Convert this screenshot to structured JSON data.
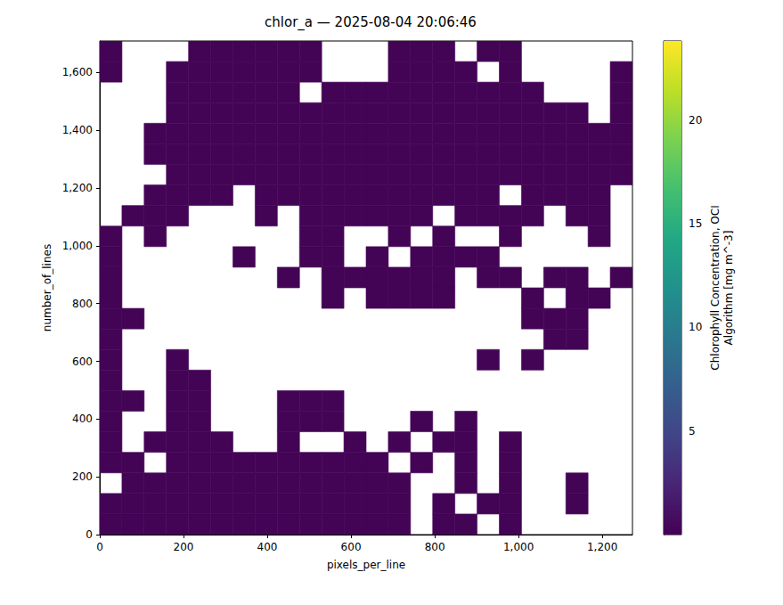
{
  "chart_data": {
    "type": "heatmap",
    "title": "chlor_a — 2025-08-04 20:06:46",
    "xlabel": "pixels_per_line",
    "ylabel": "number_of_lines",
    "xlim": [
      0,
      1272
    ],
    "xticks": [
      0,
      200,
      400,
      600,
      800,
      1000,
      1200
    ],
    "ylim": [
      0,
      1709
    ],
    "yticks": [
      0,
      200,
      400,
      600,
      800,
      1000,
      1200,
      1400,
      1600
    ],
    "clabel": "Chlorophyll Concentration, OCI\nAlgorithm [mg m^-3]",
    "clim": [
      0.02,
      23.8
    ],
    "cticks": [
      5,
      10,
      15,
      20
    ],
    "cells": [
      [
        0.2,
        0.2,
        0.2,
        0.2,
        0.2,
        0.2,
        0.2,
        0.2,
        0.2,
        0.2,
        0.2,
        0.2,
        0.2,
        0.2,
        null,
        0.2,
        0.2,
        null,
        0.2,
        null,
        null,
        null,
        null,
        null
      ],
      [
        0.2,
        0.2,
        0.2,
        0.2,
        0.2,
        0.2,
        0.2,
        0.2,
        0.2,
        0.2,
        0.2,
        0.2,
        0.2,
        0.2,
        null,
        0.2,
        null,
        0.2,
        0.2,
        null,
        null,
        0.2,
        null,
        null
      ],
      [
        null,
        0.2,
        0.2,
        0.2,
        0.2,
        0.2,
        0.2,
        0.2,
        0.2,
        0.2,
        0.2,
        0.2,
        0.2,
        0.2,
        null,
        null,
        0.2,
        null,
        0.2,
        null,
        null,
        0.2,
        null,
        null
      ],
      [
        0.2,
        0.2,
        null,
        0.2,
        0.2,
        0.2,
        0.2,
        0.2,
        0.2,
        0.2,
        0.2,
        0.2,
        0.2,
        null,
        0.2,
        null,
        0.2,
        null,
        0.2,
        null,
        null,
        null,
        null,
        null
      ],
      [
        0.2,
        null,
        0.2,
        0.2,
        0.2,
        0.2,
        null,
        null,
        0.2,
        null,
        null,
        0.2,
        null,
        0.2,
        null,
        0.2,
        0.2,
        null,
        0.2,
        null,
        null,
        null,
        null,
        null
      ],
      [
        0.2,
        null,
        null,
        0.2,
        0.2,
        null,
        null,
        null,
        0.2,
        0.2,
        0.2,
        null,
        null,
        null,
        0.2,
        null,
        0.2,
        null,
        null,
        null,
        null,
        null,
        null,
        null
      ],
      [
        0.2,
        0.2,
        null,
        0.2,
        0.2,
        null,
        null,
        null,
        0.2,
        0.2,
        0.2,
        null,
        null,
        null,
        null,
        null,
        null,
        null,
        null,
        null,
        null,
        null,
        null,
        null
      ],
      [
        0.2,
        null,
        null,
        0.2,
        0.2,
        null,
        null,
        null,
        null,
        null,
        null,
        null,
        null,
        null,
        null,
        null,
        null,
        null,
        null,
        null,
        null,
        null,
        null,
        null
      ],
      [
        0.2,
        null,
        null,
        0.2,
        null,
        null,
        null,
        null,
        null,
        null,
        null,
        null,
        null,
        null,
        null,
        null,
        null,
        0.2,
        null,
        0.2,
        null,
        null,
        null,
        null
      ],
      [
        0.2,
        null,
        null,
        null,
        null,
        null,
        null,
        null,
        null,
        null,
        null,
        null,
        null,
        null,
        null,
        null,
        null,
        null,
        null,
        null,
        0.2,
        0.2,
        null,
        null
      ],
      [
        0.2,
        0.2,
        null,
        null,
        null,
        null,
        null,
        null,
        null,
        null,
        null,
        null,
        null,
        null,
        null,
        null,
        null,
        null,
        null,
        0.2,
        0.2,
        0.2,
        null,
        null
      ],
      [
        0.2,
        null,
        null,
        null,
        null,
        null,
        null,
        null,
        null,
        null,
        0.2,
        null,
        0.2,
        0.2,
        0.2,
        0.2,
        null,
        null,
        null,
        0.2,
        null,
        0.2,
        0.2,
        null
      ],
      [
        0.2,
        null,
        null,
        null,
        null,
        null,
        null,
        null,
        0.2,
        null,
        0.2,
        0.2,
        0.2,
        0.2,
        0.2,
        0.2,
        null,
        0.2,
        0.2,
        null,
        0.2,
        0.2,
        null,
        0.2
      ],
      [
        0.2,
        null,
        null,
        null,
        null,
        null,
        0.2,
        null,
        null,
        0.2,
        0.2,
        null,
        0.2,
        null,
        0.2,
        0.2,
        0.2,
        0.2,
        null,
        null,
        null,
        null,
        null,
        null
      ],
      [
        0.2,
        null,
        0.2,
        null,
        null,
        null,
        null,
        null,
        null,
        0.2,
        0.2,
        null,
        null,
        0.2,
        null,
        0.2,
        null,
        null,
        0.2,
        null,
        null,
        null,
        0.2,
        null
      ],
      [
        null,
        0.2,
        0.2,
        0.2,
        null,
        null,
        null,
        0.2,
        null,
        0.2,
        0.2,
        0.2,
        0.2,
        0.2,
        0.2,
        null,
        0.2,
        0.2,
        0.2,
        0.2,
        null,
        0.2,
        0.2,
        null
      ],
      [
        null,
        null,
        0.2,
        0.2,
        0.2,
        0.2,
        null,
        0.2,
        0.2,
        0.2,
        0.2,
        0.2,
        0.2,
        0.2,
        0.2,
        0.2,
        0.2,
        0.2,
        null,
        0.2,
        0.2,
        0.2,
        0.2,
        null
      ],
      [
        null,
        null,
        null,
        0.2,
        0.2,
        0.2,
        0.2,
        0.2,
        0.2,
        0.2,
        0.2,
        0.2,
        0.2,
        0.2,
        0.2,
        0.2,
        0.2,
        0.2,
        0.2,
        0.2,
        0.2,
        0.2,
        0.2,
        0.2
      ],
      [
        null,
        null,
        0.2,
        0.2,
        0.2,
        0.2,
        0.2,
        0.2,
        0.2,
        0.2,
        0.2,
        0.2,
        0.2,
        0.2,
        0.2,
        0.2,
        0.2,
        0.2,
        0.2,
        0.2,
        0.2,
        0.2,
        0.2,
        0.2
      ],
      [
        null,
        null,
        0.2,
        0.2,
        0.2,
        0.2,
        0.2,
        0.2,
        0.2,
        0.2,
        0.2,
        0.2,
        0.2,
        0.2,
        0.2,
        0.2,
        0.2,
        0.2,
        0.2,
        0.2,
        0.2,
        0.2,
        0.2,
        0.2
      ],
      [
        null,
        null,
        null,
        0.2,
        0.2,
        0.2,
        0.2,
        0.2,
        0.2,
        0.2,
        0.2,
        0.2,
        0.2,
        0.2,
        0.2,
        0.2,
        0.2,
        0.2,
        0.2,
        0.2,
        0.2,
        0.2,
        null,
        0.2
      ],
      [
        null,
        null,
        null,
        0.2,
        0.2,
        0.2,
        0.2,
        0.2,
        0.2,
        null,
        0.2,
        0.2,
        0.2,
        0.2,
        0.2,
        0.2,
        0.2,
        0.2,
        0.2,
        0.2,
        null,
        null,
        null,
        0.2
      ],
      [
        0.2,
        null,
        null,
        0.2,
        0.2,
        0.2,
        0.2,
        0.2,
        0.2,
        0.2,
        null,
        null,
        null,
        0.2,
        0.2,
        0.2,
        0.2,
        null,
        0.2,
        null,
        null,
        null,
        null,
        0.2
      ],
      [
        0.2,
        null,
        null,
        null,
        0.2,
        0.2,
        0.2,
        0.2,
        0.2,
        0.2,
        null,
        null,
        null,
        0.2,
        0.2,
        0.2,
        null,
        0.2,
        0.2,
        null,
        null,
        null,
        null,
        null
      ]
    ]
  }
}
